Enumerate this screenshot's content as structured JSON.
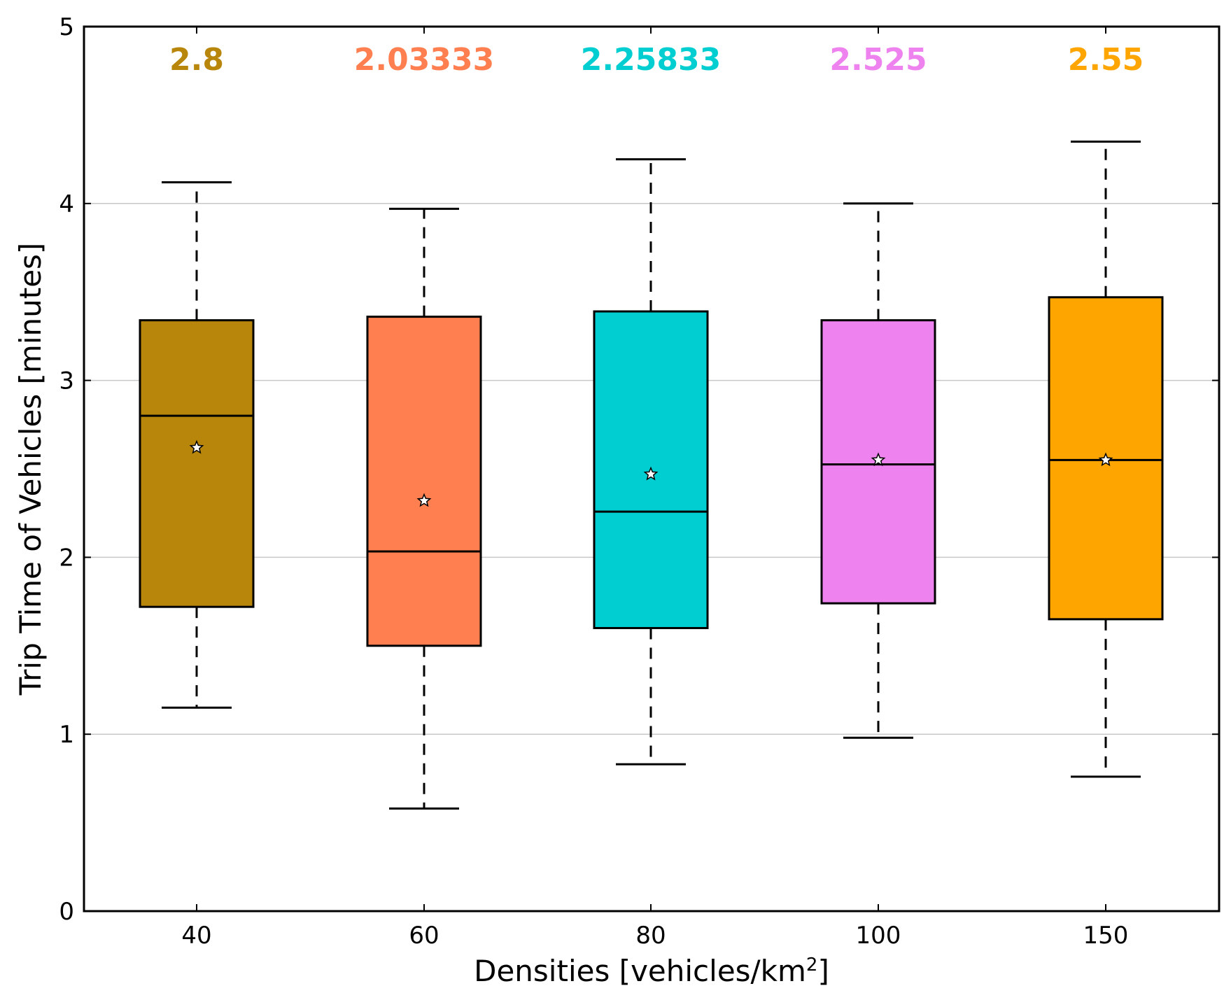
{
  "chart_data": {
    "type": "box",
    "title": "",
    "xlabel": "Densities [vehicles/km",
    "xlabel_superscript": "2",
    "xlabel_suffix": "]",
    "ylabel": "Trip Time of Vehicles [minutes]",
    "ylim": [
      0,
      5
    ],
    "yticks": [
      0,
      1,
      2,
      3,
      4,
      5
    ],
    "grid": "horizontal",
    "categories": [
      "40",
      "60",
      "80",
      "100",
      "150"
    ],
    "boxes": [
      {
        "category": "40",
        "whisker_low": 1.15,
        "q1": 1.72,
        "median": 2.8,
        "q3": 3.34,
        "whisker_high": 4.12,
        "mean": 2.62,
        "median_label": "2.8",
        "color": "#b8860b"
      },
      {
        "category": "60",
        "whisker_low": 0.58,
        "q1": 1.5,
        "median": 2.03333,
        "q3": 3.36,
        "whisker_high": 3.97,
        "mean": 2.32,
        "median_label": "2.03333",
        "color": "#ff7f50"
      },
      {
        "category": "80",
        "whisker_low": 0.83,
        "q1": 1.6,
        "median": 2.25833,
        "q3": 3.39,
        "whisker_high": 4.25,
        "mean": 2.47,
        "median_label": "2.25833",
        "color": "#00ced1"
      },
      {
        "category": "100",
        "whisker_low": 0.98,
        "q1": 1.74,
        "median": 2.525,
        "q3": 3.34,
        "whisker_high": 4.0,
        "mean": 2.55,
        "median_label": "2.525",
        "color": "#ee82ee"
      },
      {
        "category": "150",
        "whisker_low": 0.76,
        "q1": 1.65,
        "median": 2.55,
        "q3": 3.47,
        "whisker_high": 4.35,
        "mean": 2.55,
        "median_label": "2.55",
        "color": "#ffa500"
      }
    ]
  }
}
